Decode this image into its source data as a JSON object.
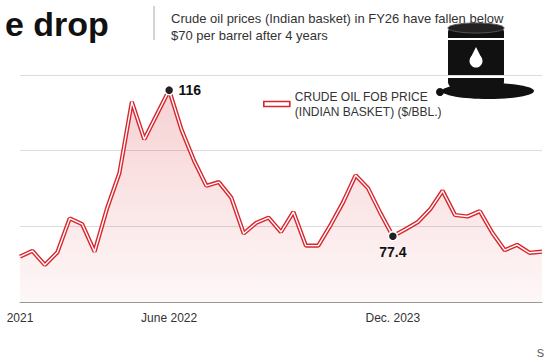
{
  "chart_data": {
    "type": "line",
    "title": "e drop",
    "subtitle": "Crude oil prices (Indian basket) in FY26 have fallen below $70 per barrel after 4 years",
    "source": "S",
    "categories": [
      "2021",
      null,
      null,
      null,
      null,
      null,
      null,
      null,
      null,
      null,
      null,
      null,
      "June 2022",
      null,
      null,
      null,
      null,
      null,
      null,
      null,
      null,
      null,
      null,
      null,
      null,
      null,
      null,
      null,
      null,
      null,
      "Dec. 2023",
      null,
      null,
      null,
      null,
      null,
      null,
      null,
      null,
      null,
      null,
      null,
      null
    ],
    "series": [
      {
        "name": "CRUDE OIL FOB PRICE (INDIAN BASKET) ($/BBL.)",
        "color": "#d7262e",
        "values": [
          72.0,
          73.5,
          69.8,
          73.1,
          82.1,
          80.6,
          73.3,
          84.7,
          94.1,
          112.9,
          103.0,
          109.5,
          116,
          105.5,
          97.4,
          90.7,
          91.7,
          87.6,
          78.1,
          80.9,
          82.3,
          78.5,
          83.8,
          74.9,
          74.9,
          80.4,
          86.4,
          93.5,
          90.1,
          83.5,
          77.4,
          79.2,
          81.1,
          84.5,
          89.4,
          83.0,
          82.6,
          84.0,
          78.3,
          73.7,
          75.1,
          73.0,
          73.3
        ]
      }
    ],
    "annotations": [
      {
        "category": "June 2022",
        "value": 116
      },
      {
        "category": "Dec. 2023",
        "value": 77.4
      }
    ],
    "ylim": [
      60,
      120
    ],
    "yticks": [
      60,
      80,
      100,
      120
    ],
    "grid": true,
    "tick_labels": "x",
    "legend": "top"
  }
}
